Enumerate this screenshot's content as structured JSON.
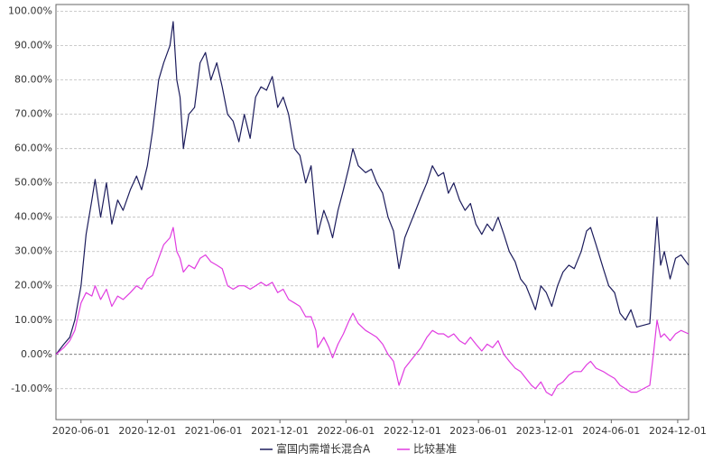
{
  "chart_data": {
    "type": "line",
    "x": [
      "2020-03-24",
      "2020-04-15",
      "2020-05-01",
      "2020-05-15",
      "2020-06-01",
      "2020-06-15",
      "2020-07-01",
      "2020-07-10",
      "2020-07-25",
      "2020-08-10",
      "2020-08-25",
      "2020-09-10",
      "2020-09-25",
      "2020-10-15",
      "2020-11-01",
      "2020-11-15",
      "2020-12-01",
      "2020-12-15",
      "2021-01-01",
      "2021-01-15",
      "2021-02-01",
      "2021-02-10",
      "2021-02-20",
      "2021-03-01",
      "2021-03-10",
      "2021-03-25",
      "2021-04-10",
      "2021-04-25",
      "2021-05-10",
      "2021-05-25",
      "2021-06-10",
      "2021-06-25",
      "2021-07-10",
      "2021-07-25",
      "2021-08-10",
      "2021-08-25",
      "2021-09-10",
      "2021-09-25",
      "2021-10-10",
      "2021-10-25",
      "2021-11-10",
      "2021-11-25",
      "2021-12-10",
      "2021-12-25",
      "2022-01-10",
      "2022-01-25",
      "2022-02-10",
      "2022-02-25",
      "2022-03-10",
      "2022-03-15",
      "2022-04-01",
      "2022-04-15",
      "2022-04-25",
      "2022-05-10",
      "2022-05-25",
      "2022-06-10",
      "2022-06-20",
      "2022-07-05",
      "2022-07-25",
      "2022-08-10",
      "2022-08-25",
      "2022-09-10",
      "2022-09-25",
      "2022-10-10",
      "2022-10-25",
      "2022-11-10",
      "2022-11-25",
      "2022-12-10",
      "2022-12-25",
      "2023-01-10",
      "2023-01-25",
      "2023-02-10",
      "2023-02-25",
      "2023-03-10",
      "2023-03-25",
      "2023-04-10",
      "2023-04-25",
      "2023-05-10",
      "2023-05-25",
      "2023-06-10",
      "2023-06-25",
      "2023-07-10",
      "2023-07-25",
      "2023-08-10",
      "2023-08-25",
      "2023-09-10",
      "2023-09-25",
      "2023-10-10",
      "2023-10-25",
      "2023-11-05",
      "2023-11-20",
      "2023-12-05",
      "2023-12-20",
      "2024-01-05",
      "2024-01-20",
      "2024-02-05",
      "2024-02-20",
      "2024-03-10",
      "2024-03-25",
      "2024-04-05",
      "2024-04-20",
      "2024-05-10",
      "2024-05-25",
      "2024-06-10",
      "2024-06-25",
      "2024-07-10",
      "2024-07-25",
      "2024-08-10",
      "2024-09-15",
      "2024-09-25",
      "2024-10-05",
      "2024-10-15",
      "2024-10-25",
      "2024-11-10",
      "2024-11-25",
      "2024-12-10",
      "2024-12-31"
    ],
    "series": [
      {
        "name": "富国内需增长混合A",
        "color": "#1c1c5c",
        "values": [
          0,
          3,
          5,
          10,
          20,
          35,
          45,
          51,
          40,
          50,
          38,
          45,
          42,
          48,
          52,
          48,
          55,
          65,
          80,
          85,
          90,
          97,
          80,
          75,
          60,
          70,
          72,
          85,
          88,
          80,
          85,
          78,
          70,
          68,
          62,
          70,
          63,
          75,
          78,
          77,
          81,
          72,
          75,
          70,
          60,
          58,
          50,
          55,
          40,
          35,
          42,
          38,
          34,
          42,
          48,
          55,
          60,
          55,
          53,
          54,
          50,
          47,
          40,
          36,
          25,
          34,
          38,
          42,
          46,
          50,
          55,
          52,
          53,
          47,
          50,
          45,
          42,
          44,
          38,
          35,
          38,
          36,
          40,
          35,
          30,
          27,
          22,
          20,
          16,
          13,
          20,
          18,
          14,
          20,
          24,
          26,
          25,
          30,
          36,
          37,
          32,
          25,
          20,
          18,
          12,
          10,
          13,
          8,
          9,
          25,
          40,
          26,
          30,
          22,
          28,
          29,
          26
        ]
      },
      {
        "name": "比较基准",
        "color": "#e03ce0",
        "values": [
          0,
          2,
          4,
          7,
          15,
          18,
          17,
          20,
          16,
          19,
          14,
          17,
          16,
          18,
          20,
          19,
          22,
          23,
          28,
          32,
          34,
          37,
          30,
          28,
          24,
          26,
          25,
          28,
          29,
          27,
          26,
          25,
          20,
          19,
          20,
          20,
          19,
          20,
          21,
          20,
          21,
          18,
          19,
          16,
          15,
          14,
          11,
          11,
          7,
          2,
          5,
          2,
          -1,
          3,
          6,
          10,
          12,
          9,
          7,
          6,
          5,
          3,
          0,
          -2,
          -9,
          -4,
          -2,
          0,
          2,
          5,
          7,
          6,
          6,
          5,
          6,
          4,
          3,
          5,
          3,
          1,
          3,
          2,
          4,
          0,
          -2,
          -4,
          -5,
          -7,
          -9,
          -10,
          -8,
          -11,
          -12,
          -9,
          -8,
          -6,
          -5,
          -5,
          -3,
          -2,
          -4,
          -5,
          -6,
          -7,
          -9,
          -10,
          -11,
          -11,
          -9,
          0,
          10,
          5,
          6,
          4,
          6,
          7,
          6
        ]
      }
    ],
    "xlim": [
      "2020-03-24",
      "2024-12-31"
    ],
    "xticks": [
      "2020-06-01",
      "2020-12-01",
      "2021-06-01",
      "2021-12-01",
      "2022-06-01",
      "2022-12-01",
      "2023-06-01",
      "2023-12-01",
      "2024-06-01",
      "2024-12-01"
    ],
    "ylim": [
      -19,
      102
    ],
    "yticks": [
      {
        "value": -10,
        "label": "-10.00%"
      },
      {
        "value": 0,
        "label": "0.00%"
      },
      {
        "value": 10,
        "label": "10.00%"
      },
      {
        "value": 20,
        "label": "20.00%"
      },
      {
        "value": 30,
        "label": "30.00%"
      },
      {
        "value": 40,
        "label": "40.00%"
      },
      {
        "value": 50,
        "label": "50.00%"
      },
      {
        "value": 60,
        "label": "60.00%"
      },
      {
        "value": 70,
        "label": "70.00%"
      },
      {
        "value": 80,
        "label": "80.00%"
      },
      {
        "value": 90,
        "label": "90.00%"
      },
      {
        "value": 100,
        "label": "100.00%"
      }
    ],
    "grid": true,
    "legend": "bottom"
  }
}
